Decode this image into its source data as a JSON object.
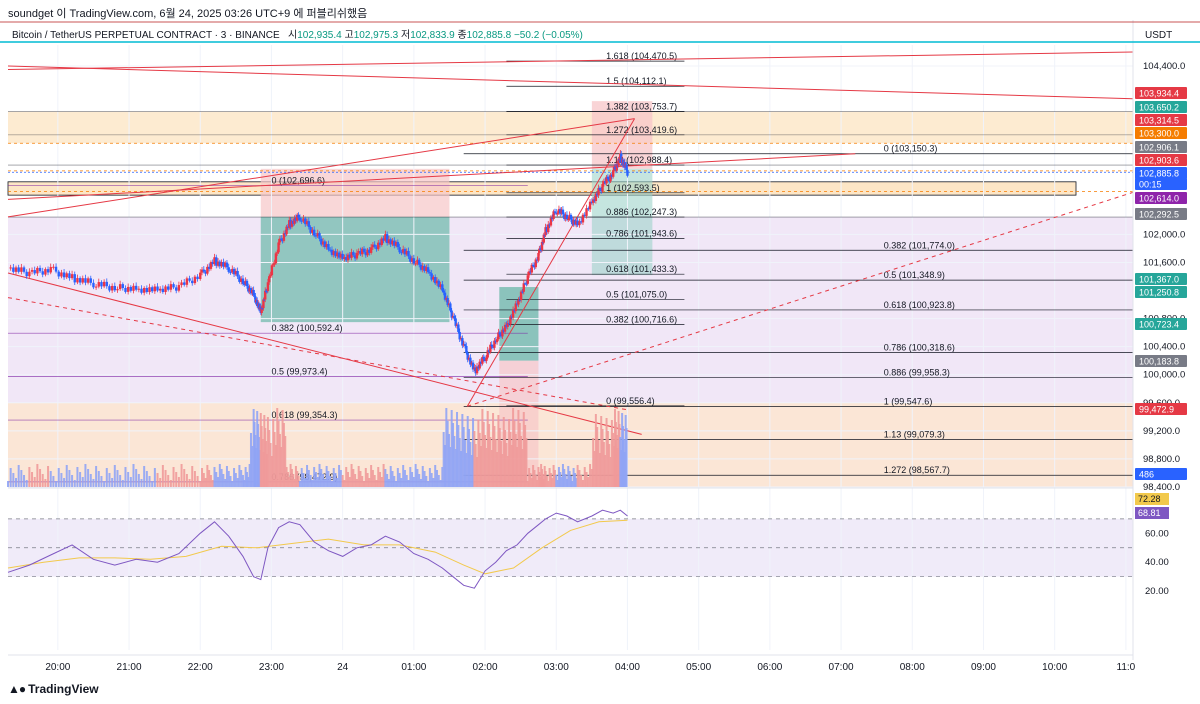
{
  "header": {
    "author_line": "soundget 이 TradingView.com, 6월 24, 2025 03:26 UTC+9 에 퍼블리쉬했음",
    "symbol": "Bitcoin / TetherUS PERPETUAL CONTRACT · 3 · BINANCE",
    "open_label": "시",
    "open": "102,935.4",
    "high_label": "고",
    "high": "102,975.3",
    "low_label": "저",
    "low": "102,833.9",
    "close_label": "종",
    "close": "102,885.8",
    "change": "−50.2 (−0.05%)",
    "currency": "USDT"
  },
  "footer": {
    "brand": "TradingView",
    "logo": "tradingview-logo-icon"
  },
  "colors": {
    "up": "#26a69a",
    "down": "#ef5350",
    "up_candle": "#ec3545",
    "down_candle": "#2962ff",
    "fib_line": "#131722",
    "trend_line": "#e53945",
    "purple_zone": "#efe3f6",
    "orange_zone": "#fbe3d1",
    "rsi_line": "#7e57c2",
    "rsi_ma": "#f2c94c"
  },
  "chart_data": {
    "type": "candlestick",
    "price_axis": {
      "ylim": [
        98400,
        104700
      ],
      "ticks": [
        "104,400.0",
        "102,000.0",
        "101,600.0",
        "100,800.0",
        "100,400.0",
        "100,000.0",
        "99,600.0",
        "99,200.0",
        "98,800.0",
        "98,400.0"
      ],
      "tick_values": [
        104400,
        102000,
        101600,
        100800,
        100400,
        100000,
        99600,
        99200,
        98800,
        98400
      ]
    },
    "time_axis": {
      "labels": [
        "20:00",
        "21:00",
        "22:00",
        "23:00",
        "24",
        "01:00",
        "02:00",
        "03:00",
        "04:00",
        "05:00",
        "06:00",
        "07:00",
        "08:00",
        "09:00",
        "10:00",
        "11:0"
      ],
      "hours": [
        20,
        21,
        22,
        23,
        24,
        25,
        26,
        27,
        28,
        29,
        30,
        31,
        32,
        33,
        34,
        35
      ],
      "range": [
        19.3,
        35.1
      ]
    },
    "price_path": [
      [
        19.3,
        101520
      ],
      [
        19.6,
        101450
      ],
      [
        19.9,
        101500
      ],
      [
        20.2,
        101380
      ],
      [
        20.5,
        101300
      ],
      [
        20.8,
        101240
      ],
      [
        21.1,
        101230
      ],
      [
        21.4,
        101200
      ],
      [
        21.7,
        101260
      ],
      [
        22.0,
        101420
      ],
      [
        22.2,
        101620
      ],
      [
        22.4,
        101520
      ],
      [
        22.6,
        101330
      ],
      [
        22.75,
        101150
      ],
      [
        22.85,
        100880
      ],
      [
        22.95,
        101300
      ],
      [
        23.1,
        101850
      ],
      [
        23.25,
        102150
      ],
      [
        23.4,
        102250
      ],
      [
        23.6,
        102020
      ],
      [
        23.8,
        101800
      ],
      [
        24.0,
        101650
      ],
      [
        24.2,
        101720
      ],
      [
        24.4,
        101780
      ],
      [
        24.6,
        101950
      ],
      [
        24.8,
        101800
      ],
      [
        25.0,
        101620
      ],
      [
        25.2,
        101480
      ],
      [
        25.4,
        101200
      ],
      [
        25.55,
        100820
      ],
      [
        25.7,
        100400
      ],
      [
        25.85,
        100050
      ],
      [
        26.0,
        100250
      ],
      [
        26.15,
        100500
      ],
      [
        26.3,
        100700
      ],
      [
        26.45,
        101000
      ],
      [
        26.6,
        101400
      ],
      [
        26.75,
        101700
      ],
      [
        26.85,
        102050
      ],
      [
        27.0,
        102350
      ],
      [
        27.15,
        102250
      ],
      [
        27.3,
        102150
      ],
      [
        27.5,
        102450
      ],
      [
        27.65,
        102700
      ],
      [
        27.8,
        102880
      ],
      [
        27.9,
        103100
      ],
      [
        28.0,
        102890
      ]
    ],
    "fibonacci_levels": [
      {
        "ratio": "1.618",
        "price": "104,470.5"
      },
      {
        "ratio": "1.5",
        "price": "104,112.1"
      },
      {
        "ratio": "1.382",
        "price": "103,753.7"
      },
      {
        "ratio": "1.272",
        "price": "103,419.6"
      },
      {
        "ratio": "1.13",
        "price": "102,988.4"
      },
      {
        "ratio": "1",
        "price": "102,593.5"
      },
      {
        "ratio": "0.886",
        "price": "102,247.3"
      },
      {
        "ratio": "0.786",
        "price": "101,943.6"
      },
      {
        "ratio": "0.618",
        "price": "101,433.3"
      },
      {
        "ratio": "0.5",
        "price": "101,075.0"
      },
      {
        "ratio": "0.382",
        "price": "100,716.6"
      },
      {
        "ratio": "0",
        "price": "99,556.4"
      }
    ],
    "fibonacci_levels_2": [
      {
        "ratio": "0",
        "price": "103,150.3"
      },
      {
        "ratio": "0.382",
        "price": "101,774.0"
      },
      {
        "ratio": "0.5",
        "price": "101,348.9"
      },
      {
        "ratio": "0.618",
        "price": "100,923.8"
      },
      {
        "ratio": "0.786",
        "price": "100,318.6"
      },
      {
        "ratio": "0.886",
        "price": "99,958.3"
      },
      {
        "ratio": "1",
        "price": "99,547.6"
      },
      {
        "ratio": "1.13",
        "price": "99,079.3"
      },
      {
        "ratio": "1.272",
        "price": "98,567.7"
      }
    ],
    "fibonacci_levels_3": [
      {
        "ratio": "0",
        "price": "102,696.6"
      },
      {
        "ratio": "0.382",
        "price": "100,592.4"
      },
      {
        "ratio": "0.5",
        "price": "99,973.4"
      },
      {
        "ratio": "0.618",
        "price": "99,354.3"
      },
      {
        "ratio": "0.786",
        "price": "98,472.9"
      }
    ],
    "price_badges": [
      {
        "label": "103,934.4",
        "color": "#e53945"
      },
      {
        "label": "103,650.2",
        "color": "#26a69a"
      },
      {
        "label": "103,314.5",
        "color": "#e53945"
      },
      {
        "label": "103,300.0",
        "color": "#f57c00"
      },
      {
        "label": "102,906.1",
        "color": "#787b86"
      },
      {
        "label": "102,903.6",
        "color": "#e53945"
      },
      {
        "label": "102,885.8",
        "color": "#2962ff"
      },
      {
        "label": "00:15",
        "color": "#2962ff"
      },
      {
        "label": "102,614.0",
        "color": "#8e24aa"
      },
      {
        "label": "102,292.5",
        "color": "#787b86"
      },
      {
        "label": "101,367.0",
        "color": "#26a69a"
      },
      {
        "label": "101,250.8",
        "color": "#26a69a"
      },
      {
        "label": "100,723.4",
        "color": "#26a69a"
      },
      {
        "label": "100,183.8",
        "color": "#787b86"
      },
      {
        "label": "99,472.9",
        "color": "#e53945"
      },
      {
        "label": "486",
        "color": "#2962ff"
      }
    ],
    "rsi": {
      "ticks": [
        "60.00",
        "40.00",
        "20.00"
      ],
      "tick_values": [
        60,
        40,
        20
      ],
      "ylim": [
        0,
        90
      ],
      "bands": [
        70,
        50,
        30
      ],
      "value": "72.28",
      "ma_value": "68.81",
      "path": [
        [
          19.3,
          33
        ],
        [
          19.6,
          38
        ],
        [
          19.9,
          45
        ],
        [
          20.2,
          52
        ],
        [
          20.5,
          42
        ],
        [
          20.8,
          38
        ],
        [
          21.1,
          42
        ],
        [
          21.4,
          40
        ],
        [
          21.7,
          46
        ],
        [
          22.0,
          60
        ],
        [
          22.2,
          68
        ],
        [
          22.4,
          58
        ],
        [
          22.6,
          44
        ],
        [
          22.75,
          30
        ],
        [
          22.85,
          28
        ],
        [
          22.95,
          50
        ],
        [
          23.1,
          64
        ],
        [
          23.25,
          68
        ],
        [
          23.4,
          66
        ],
        [
          23.6,
          54
        ],
        [
          23.8,
          48
        ],
        [
          24.0,
          44
        ],
        [
          24.2,
          50
        ],
        [
          24.4,
          52
        ],
        [
          24.6,
          58
        ],
        [
          24.8,
          54
        ],
        [
          25.0,
          46
        ],
        [
          25.2,
          42
        ],
        [
          25.4,
          36
        ],
        [
          25.55,
          30
        ],
        [
          25.7,
          24
        ],
        [
          25.85,
          22
        ],
        [
          26.0,
          34
        ],
        [
          26.15,
          40
        ],
        [
          26.3,
          48
        ],
        [
          26.45,
          52
        ],
        [
          26.6,
          60
        ],
        [
          26.75,
          66
        ],
        [
          26.85,
          70
        ],
        [
          27.0,
          74
        ],
        [
          27.15,
          72
        ],
        [
          27.3,
          68
        ],
        [
          27.5,
          72
        ],
        [
          27.65,
          76
        ],
        [
          27.8,
          74
        ],
        [
          27.9,
          76
        ],
        [
          28.0,
          72
        ]
      ],
      "ma_path": [
        [
          19.3,
          36
        ],
        [
          19.8,
          40
        ],
        [
          20.3,
          43
        ],
        [
          20.8,
          43
        ],
        [
          21.3,
          42
        ],
        [
          21.8,
          44
        ],
        [
          22.3,
          51
        ],
        [
          22.8,
          50
        ],
        [
          23.3,
          53
        ],
        [
          23.8,
          56
        ],
        [
          24.3,
          52
        ],
        [
          24.8,
          52
        ],
        [
          25.3,
          47
        ],
        [
          25.7,
          38
        ],
        [
          26.0,
          32
        ],
        [
          26.4,
          36
        ],
        [
          26.8,
          50
        ],
        [
          27.2,
          62
        ],
        [
          27.6,
          68
        ],
        [
          28.0,
          69
        ]
      ]
    }
  }
}
